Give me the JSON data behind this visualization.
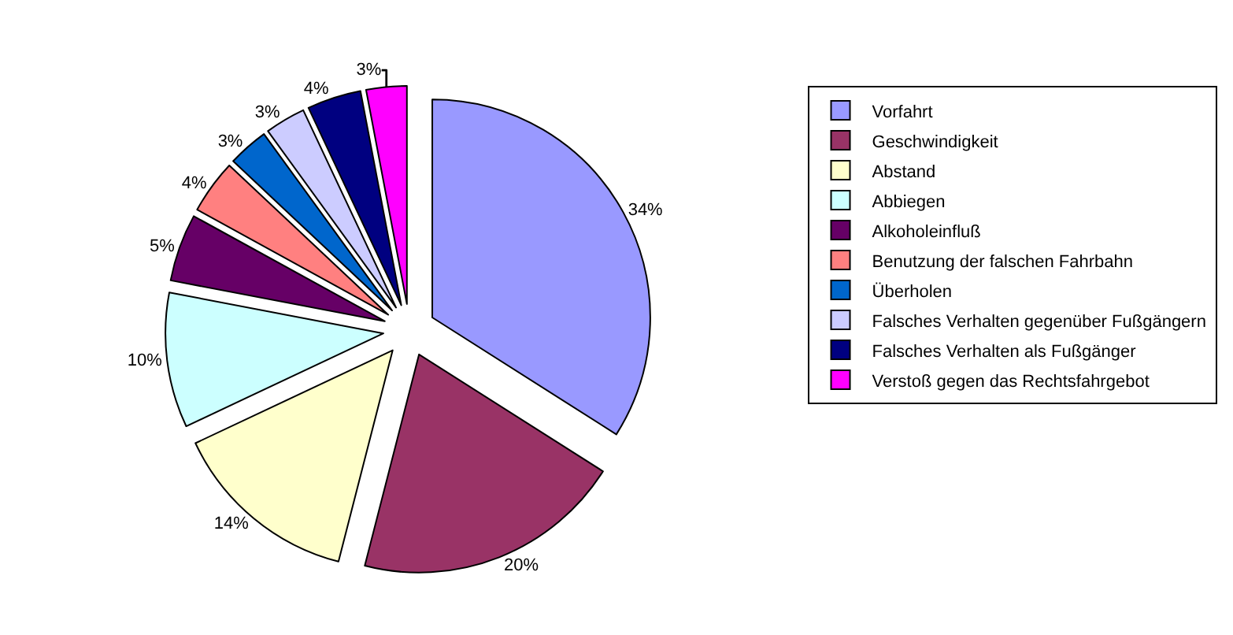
{
  "chart_data": {
    "type": "pie",
    "categories": [
      "Vorfahrt",
      "Geschwindigkeit",
      "Abstand",
      "Abbiegen",
      "Alkoholeinfluß",
      "Benutzung der falschen Fahrbahn",
      "Überholen",
      "Falsches Verhalten gegenüber Fußgängern",
      "Falsches Verhalten als Fußgänger",
      "Verstoß gegen das Rechtsfahrgebot"
    ],
    "values": [
      34,
      20,
      14,
      10,
      5,
      4,
      3,
      3,
      4,
      3
    ],
    "colors": [
      "#9999ff",
      "#993366",
      "#ffffcc",
      "#ccffff",
      "#660066",
      "#ff8080",
      "#0066cc",
      "#ccccff",
      "#000080",
      "#ff00ff"
    ],
    "value_labels": [
      "34%",
      "20%",
      "14%",
      "10%",
      "5%",
      "4%",
      "3%",
      "3%",
      "4%",
      "3%"
    ],
    "legend": "right"
  }
}
